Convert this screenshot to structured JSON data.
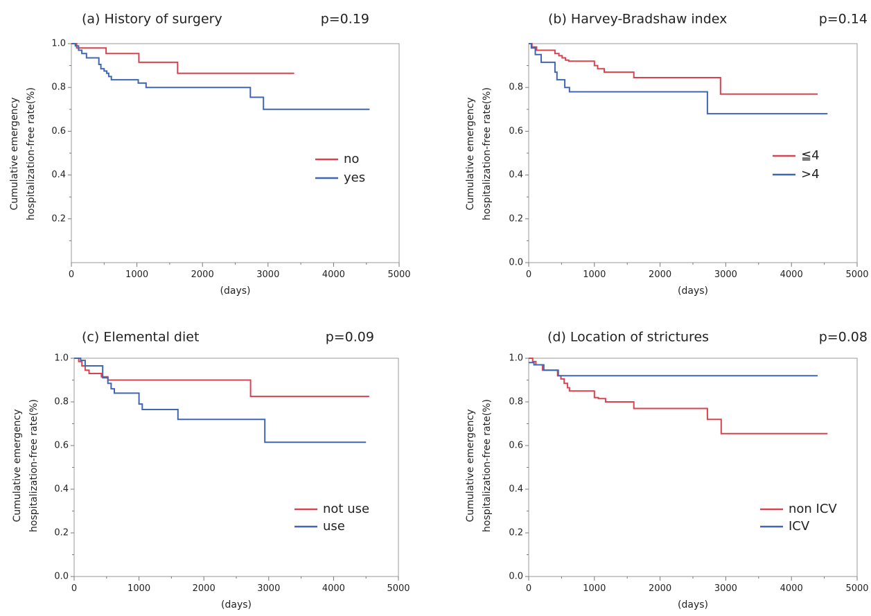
{
  "chart_data": [
    {
      "type": "line",
      "step": true,
      "title": "(a) History of surgery",
      "p_value": "p=0.19",
      "xlabel": "(days)",
      "ylabel": [
        "Cumulative emergency",
        "hospitalization-free rate(%)"
      ],
      "xlim": [
        0,
        5000
      ],
      "ylim": [
        0,
        1.0
      ],
      "xticks": [
        0,
        1000,
        2000,
        3000,
        4000,
        5000
      ],
      "yticks": [
        0.2,
        0.4,
        0.6,
        0.8,
        1.0
      ],
      "ytick_labels": [
        "0.2",
        "0.4",
        "0.6",
        "0.8",
        "1.0"
      ],
      "legend_position": "right",
      "series": [
        {
          "name": "no",
          "color": "#d9434f",
          "x": [
            0,
            80,
            530,
            1030,
            1620,
            3400
          ],
          "y": [
            1.0,
            0.98,
            0.955,
            0.915,
            0.865,
            0.865
          ]
        },
        {
          "name": "yes",
          "color": "#3f66b3",
          "x": [
            0,
            60,
            110,
            160,
            230,
            420,
            450,
            500,
            540,
            570,
            610,
            1020,
            1140,
            2730,
            2930,
            4550
          ],
          "y": [
            1.0,
            0.99,
            0.97,
            0.955,
            0.935,
            0.905,
            0.885,
            0.875,
            0.865,
            0.85,
            0.835,
            0.82,
            0.8,
            0.755,
            0.7,
            0.7
          ]
        }
      ]
    },
    {
      "type": "line",
      "step": true,
      "title": "(b) Harvey-Bradshaw index",
      "p_value": "p=0.14",
      "xlabel": "(days)",
      "ylabel": [
        "Cumulative emergency",
        "hospitalization-free rate(%)"
      ],
      "xlim": [
        0,
        5000
      ],
      "ylim": [
        0,
        1.0
      ],
      "xticks": [
        0,
        1000,
        2000,
        3000,
        4000,
        5000
      ],
      "yticks": [
        0.0,
        0.2,
        0.4,
        0.6,
        0.8
      ],
      "ytick_labels": [
        "0.0",
        "0.2",
        "0.4",
        "0.6",
        "0.8"
      ],
      "legend_position": "right",
      "series": [
        {
          "name": "≦4",
          "color": "#d9434f",
          "x": [
            0,
            50,
            120,
            400,
            460,
            510,
            560,
            610,
            1000,
            1050,
            1150,
            1600,
            2920,
            4400
          ],
          "y": [
            1.0,
            0.985,
            0.97,
            0.955,
            0.945,
            0.935,
            0.925,
            0.92,
            0.9,
            0.885,
            0.87,
            0.845,
            0.77,
            0.77
          ]
        },
        {
          "name": ">4",
          "color": "#3f66b3",
          "x": [
            0,
            40,
            100,
            190,
            400,
            430,
            550,
            620,
            2720,
            4550
          ],
          "y": [
            1.0,
            0.98,
            0.95,
            0.915,
            0.87,
            0.835,
            0.8,
            0.78,
            0.68,
            0.68
          ]
        }
      ]
    },
    {
      "type": "line",
      "step": true,
      "title": "(c) Elemental diet",
      "p_value": "p=0.09",
      "xlabel": "(days)",
      "ylabel": [
        "Cumulative emergency",
        "hospitalization-free rate(%)"
      ],
      "xlim": [
        0,
        5000
      ],
      "ylim": [
        0,
        1.0
      ],
      "xticks": [
        0,
        1000,
        2000,
        3000,
        4000,
        5000
      ],
      "yticks": [
        0.0,
        0.2,
        0.4,
        0.6,
        0.8,
        1.0
      ],
      "ytick_labels": [
        "0.0",
        "0.2",
        "0.4",
        "0.6",
        "0.8",
        "1.0"
      ],
      "legend_position": "bottom-right",
      "series": [
        {
          "name": "not use",
          "color": "#d9434f",
          "x": [
            0,
            70,
            120,
            170,
            230,
            420,
            520,
            2720,
            4550
          ],
          "y": [
            1.0,
            0.985,
            0.965,
            0.945,
            0.93,
            0.915,
            0.9,
            0.825,
            0.825
          ]
        },
        {
          "name": "use",
          "color": "#3f66b3",
          "x": [
            0,
            100,
            170,
            440,
            520,
            570,
            620,
            1000,
            1050,
            1180,
            1600,
            2940,
            4500
          ],
          "y": [
            1.0,
            0.99,
            0.965,
            0.91,
            0.885,
            0.86,
            0.84,
            0.79,
            0.765,
            0.765,
            0.72,
            0.615,
            0.615
          ]
        }
      ]
    },
    {
      "type": "line",
      "step": true,
      "title": "(d) Location of strictures",
      "p_value": "p=0.08",
      "xlabel": "(days)",
      "ylabel": [
        "Cumulative emergency",
        "hospitalization-free rate(%)"
      ],
      "xlim": [
        0,
        5000
      ],
      "ylim": [
        0,
        1.0
      ],
      "xticks": [
        0,
        1000,
        2000,
        3000,
        4000,
        5000
      ],
      "yticks": [
        0.0,
        0.2,
        0.4,
        0.6,
        0.8,
        1.0
      ],
      "ytick_labels": [
        "0.0",
        "0.2",
        "0.4",
        "0.6",
        "0.8",
        "1.0"
      ],
      "legend_position": "bottom-right",
      "series": [
        {
          "name": "non ICV",
          "color": "#d9434f",
          "x": [
            0,
            60,
            110,
            210,
            440,
            490,
            540,
            590,
            620,
            1000,
            1060,
            1170,
            1600,
            2720,
            2930,
            4550
          ],
          "y": [
            1.0,
            0.985,
            0.97,
            0.945,
            0.92,
            0.905,
            0.885,
            0.865,
            0.85,
            0.82,
            0.815,
            0.8,
            0.77,
            0.72,
            0.655,
            0.655
          ]
        },
        {
          "name": "ICV",
          "color": "#3f66b3",
          "x": [
            0,
            80,
            230,
            450,
            4400
          ],
          "y": [
            0.98,
            0.97,
            0.945,
            0.92,
            0.92
          ]
        }
      ]
    }
  ]
}
